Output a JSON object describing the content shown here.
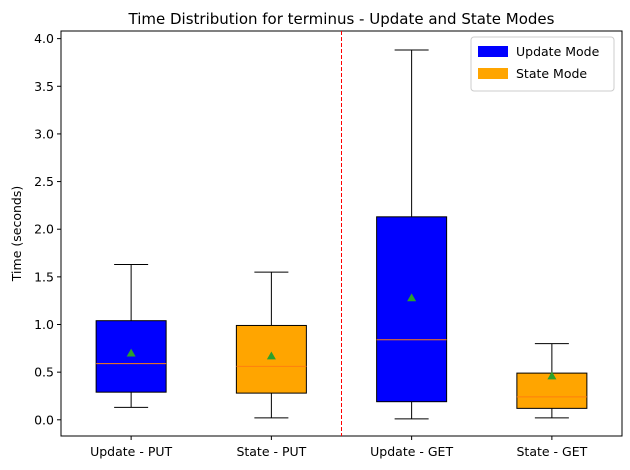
{
  "chart_data": {
    "type": "box",
    "title": "Time Distribution for terminus - Update and State Modes",
    "xlabel": "",
    "ylabel": "Time (seconds)",
    "ylim": [
      -0.17,
      4.08
    ],
    "yticks": [
      0.0,
      0.5,
      1.0,
      1.5,
      2.0,
      2.5,
      3.0,
      3.5,
      4.0
    ],
    "ytick_labels": [
      "0.0",
      "0.5",
      "1.0",
      "1.5",
      "2.0",
      "2.5",
      "3.0",
      "3.5",
      "4.0"
    ],
    "categories": [
      "Update - PUT",
      "State - PUT",
      "Update - GET",
      "State - GET"
    ],
    "boxes": [
      {
        "label": "Update - PUT",
        "mode": "Update Mode",
        "whisker_low": 0.13,
        "q1": 0.29,
        "median": 0.59,
        "q3": 1.04,
        "whisker_high": 1.63,
        "mean": 0.7,
        "color": "#0000ff"
      },
      {
        "label": "State - PUT",
        "mode": "State Mode",
        "whisker_low": 0.02,
        "q1": 0.28,
        "median": 0.56,
        "q3": 0.99,
        "whisker_high": 1.55,
        "mean": 0.67,
        "color": "#ffa500"
      },
      {
        "label": "Update - GET",
        "mode": "Update Mode",
        "whisker_low": 0.01,
        "q1": 0.19,
        "median": 0.84,
        "q3": 2.13,
        "whisker_high": 3.88,
        "mean": 1.28,
        "color": "#0000ff"
      },
      {
        "label": "State - GET",
        "mode": "State Mode",
        "whisker_low": 0.02,
        "q1": 0.12,
        "median": 0.24,
        "q3": 0.49,
        "whisker_high": 0.8,
        "mean": 0.46,
        "color": "#ffa500"
      }
    ],
    "median_color": "#ff7f0e",
    "mean_marker_color": "#2ca02c",
    "separator": {
      "between_categories": [
        2,
        3
      ],
      "color": "#ff0000",
      "style": "dashed"
    },
    "legend": {
      "placement": "top-right",
      "entries": [
        {
          "label": "Update Mode",
          "color": "#0000ff"
        },
        {
          "label": "State Mode",
          "color": "#ffa500"
        }
      ]
    },
    "grid": false
  }
}
